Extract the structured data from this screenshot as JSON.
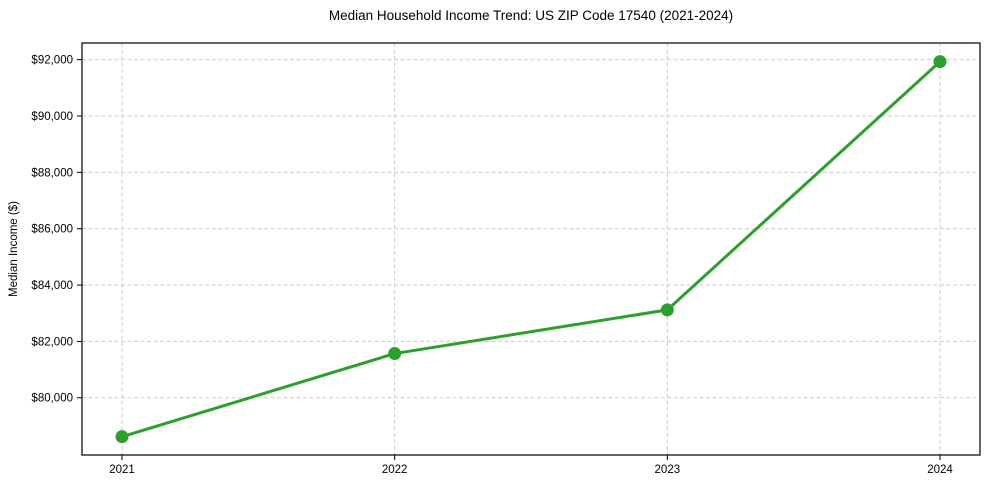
{
  "figure": {
    "background_color": "#ffffff"
  },
  "chart_data": {
    "type": "line",
    "title": "Median Household Income Trend: US ZIP Code 17540 (2021-2024)",
    "xlabel": "",
    "ylabel": "Median Income ($)",
    "categories": [
      "2021",
      "2022",
      "2023",
      "2024"
    ],
    "series": [
      {
        "name": "Median Household Income",
        "values": [
          78620,
          81570,
          83120,
          91930
        ],
        "color": "#2ca02c",
        "marker": "circle"
      }
    ],
    "ylim": [
      77970,
      92590
    ],
    "yticks": {
      "values": [
        80000,
        82000,
        84000,
        86000,
        88000,
        90000,
        92000
      ],
      "labels": [
        "$80,000",
        "$82,000",
        "$84,000",
        "$86,000",
        "$88,000",
        "$90,000",
        "$92,000"
      ]
    },
    "grid": true,
    "grid_style": "dashed",
    "grid_color": "#cccccc",
    "spine_color": "#000000",
    "legend": "none"
  }
}
